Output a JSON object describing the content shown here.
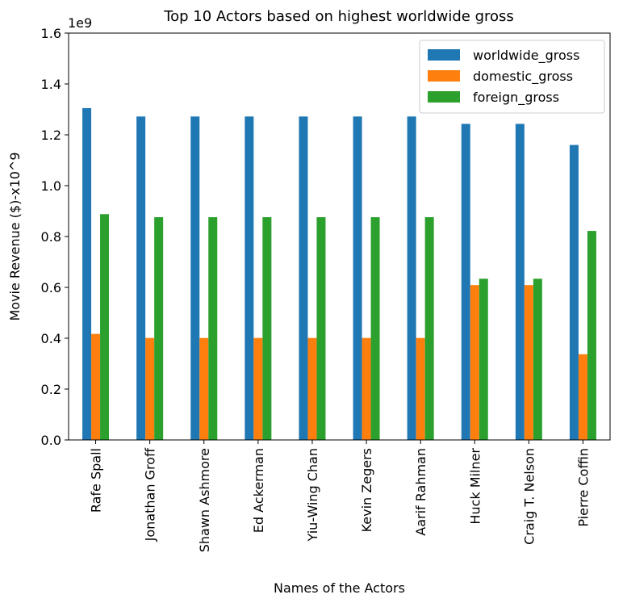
{
  "chart_data": {
    "type": "bar",
    "title": "Top 10 Actors based on highest worldwide gross",
    "xlabel": "Names of the Actors",
    "ylabel": "Movie Revenue ($)-x10^9",
    "y_scale_label": "1e9",
    "ylim": [
      0,
      1.6
    ],
    "yticks": [
      "0.0",
      "0.2",
      "0.4",
      "0.6",
      "0.8",
      "1.0",
      "1.2",
      "1.4",
      "1.6"
    ],
    "legend_position": "top-right",
    "grid": false,
    "categories": [
      "Rafe Spall",
      "Jonathan Groff",
      "Shawn Ashmore",
      "Ed Ackerman",
      "Yiu-Wing Chan",
      "Kevin Zegers",
      "Aarif Rahman",
      "Huck Milner",
      "Craig T. Nelson",
      "Pierre Coffin"
    ],
    "series": [
      {
        "name": "worldwide_gross",
        "color": "#1f77b4",
        "values": [
          1.305,
          1.272,
          1.272,
          1.272,
          1.272,
          1.272,
          1.272,
          1.243,
          1.243,
          1.16
        ]
      },
      {
        "name": "domestic_gross",
        "color": "#ff7f0e",
        "values": [
          0.417,
          0.401,
          0.401,
          0.401,
          0.401,
          0.401,
          0.401,
          0.609,
          0.609,
          0.337
        ]
      },
      {
        "name": "foreign_gross",
        "color": "#2ca02c",
        "values": [
          0.888,
          0.876,
          0.876,
          0.876,
          0.876,
          0.876,
          0.876,
          0.634,
          0.634,
          0.822
        ]
      }
    ]
  }
}
